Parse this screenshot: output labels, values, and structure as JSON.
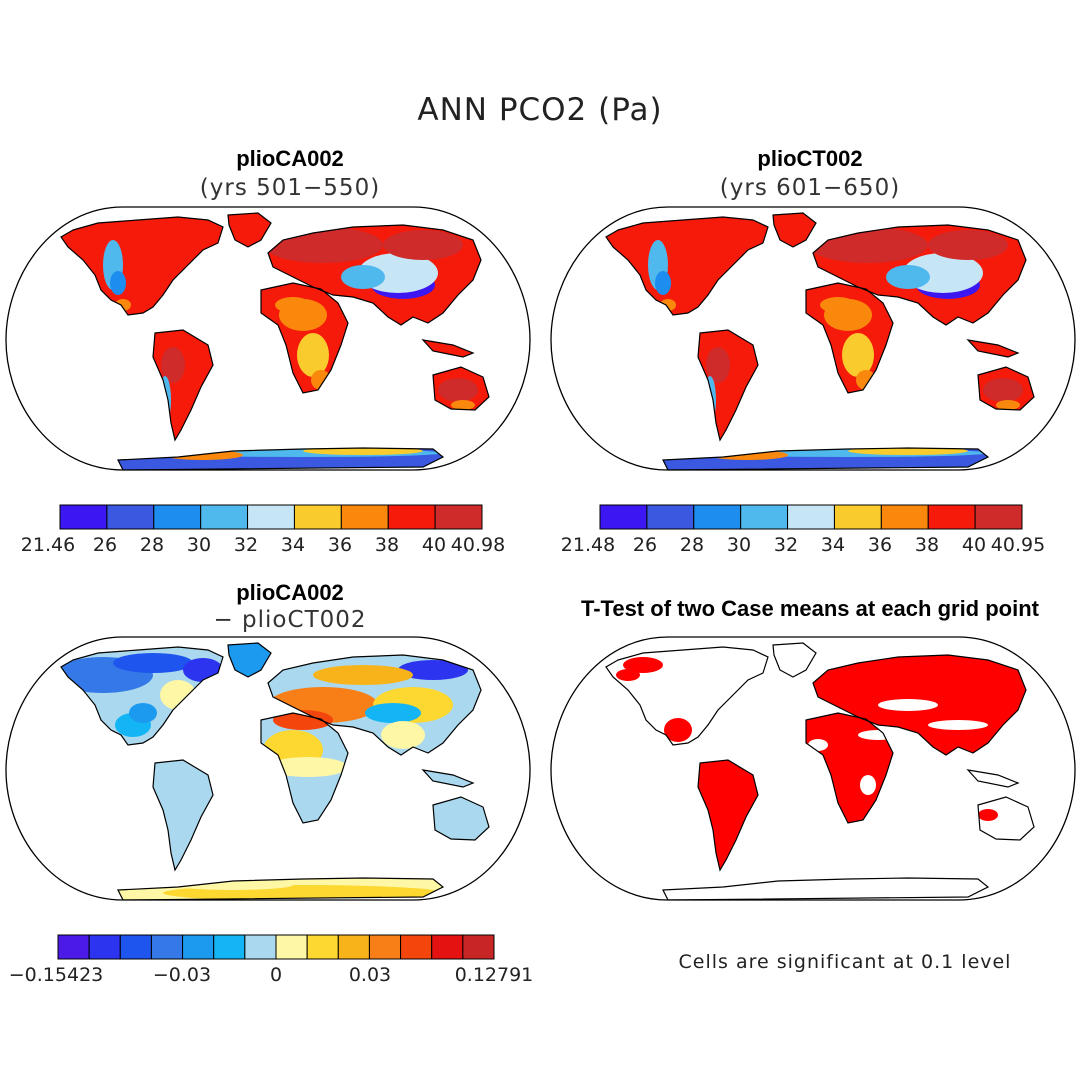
{
  "title": "ANN PCO2 (Pa)",
  "panels": [
    {
      "id": "tl",
      "title": "plioCA002",
      "subtitle": "(yrs 501−550)",
      "colorbar": {
        "colors": [
          "#3d17f2",
          "#3a59e0",
          "#1e8df0",
          "#4fb8ec",
          "#c6e5f5",
          "#f9cb2c",
          "#f9880c",
          "#f51a0a",
          "#cf2b2b"
        ],
        "tick_labels": [
          "21.46",
          "26",
          "28",
          "30",
          "32",
          "34",
          "36",
          "38",
          "40",
          "40.98"
        ]
      }
    },
    {
      "id": "tr",
      "title": "plioCT002",
      "subtitle": "(yrs 601−650)",
      "colorbar": {
        "colors": [
          "#3d17f2",
          "#3a59e0",
          "#1e8df0",
          "#4fb8ec",
          "#c6e5f5",
          "#f9cb2c",
          "#f9880c",
          "#f51a0a",
          "#cf2b2b"
        ],
        "tick_labels": [
          "21.48",
          "26",
          "28",
          "30",
          "32",
          "34",
          "36",
          "38",
          "40",
          "40.95"
        ]
      }
    },
    {
      "id": "bl",
      "title": "plioCA002",
      "subtitle": "− plioCT002",
      "colorbar": {
        "colors": [
          "#4b1ae6",
          "#2d34f0",
          "#1d55ee",
          "#3579e8",
          "#1c9af0",
          "#14b5f4",
          "#a9d8ef",
          "#fdf7a6",
          "#fcd831",
          "#f9b31a",
          "#f87f18",
          "#f4450c",
          "#e51212",
          "#c82626"
        ],
        "tick_labels": [
          "−0.15423",
          "−0.03",
          "0",
          "0.03",
          "0.12791"
        ]
      }
    },
    {
      "id": "br",
      "title": "T-Test of two Case means at each grid point",
      "note": "Cells are significant at 0.1 level"
    }
  ]
}
